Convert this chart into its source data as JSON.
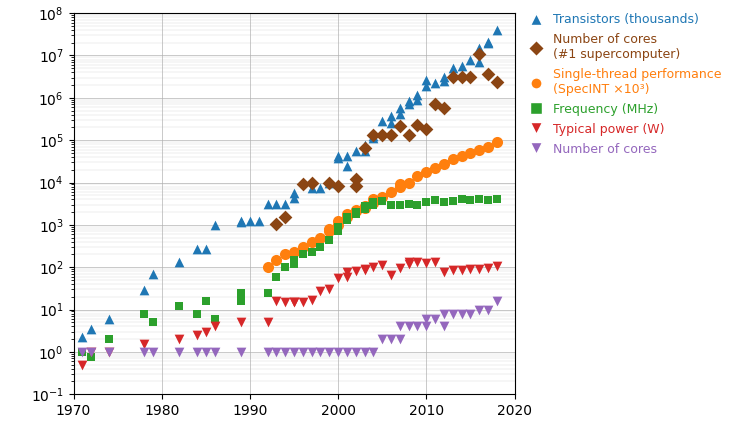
{
  "title": "",
  "xlim": [
    1970,
    2020
  ],
  "ylim_log_min": -1,
  "ylim_log_max": 8,
  "background_color": "#ffffff",
  "grid_color": "#b0b0b0",
  "transistors": {
    "color": "#1f77b4",
    "marker": "^",
    "label": "Transistors (thousands)",
    "data": [
      [
        1971,
        2.3
      ],
      [
        1972,
        3.5
      ],
      [
        1974,
        6.0
      ],
      [
        1978,
        29
      ],
      [
        1979,
        68
      ],
      [
        1982,
        134
      ],
      [
        1984,
        275
      ],
      [
        1985,
        275
      ],
      [
        1986,
        1000
      ],
      [
        1989,
        1200
      ],
      [
        1989,
        1180
      ],
      [
        1990,
        1200
      ],
      [
        1991,
        1200
      ],
      [
        1992,
        3100
      ],
      [
        1993,
        3100
      ],
      [
        1994,
        3100
      ],
      [
        1995,
        5500
      ],
      [
        1995,
        4400
      ],
      [
        1997,
        7500
      ],
      [
        1998,
        7500
      ],
      [
        1999,
        9500
      ],
      [
        2000,
        42000
      ],
      [
        2000,
        37500
      ],
      [
        2001,
        25000
      ],
      [
        2001,
        42000
      ],
      [
        2002,
        55000
      ],
      [
        2003,
        77000
      ],
      [
        2003,
        55000
      ],
      [
        2004,
        125000
      ],
      [
        2004,
        112000
      ],
      [
        2005,
        291000
      ],
      [
        2006,
        376000
      ],
      [
        2006,
        250000
      ],
      [
        2007,
        582000
      ],
      [
        2007,
        420000
      ],
      [
        2008,
        820000
      ],
      [
        2008,
        700000
      ],
      [
        2009,
        1170000
      ],
      [
        2009,
        904000
      ],
      [
        2010,
        2600000
      ],
      [
        2010,
        1900000
      ],
      [
        2011,
        2300000
      ],
      [
        2012,
        3100000
      ],
      [
        2012,
        2500000
      ],
      [
        2013,
        5000000
      ],
      [
        2014,
        5700000
      ],
      [
        2015,
        8000000
      ],
      [
        2016,
        7200000
      ],
      [
        2016,
        15000000
      ],
      [
        2017,
        19200000
      ],
      [
        2017,
        21000000
      ],
      [
        2018,
        39000000
      ]
    ]
  },
  "supercomputer_cores": {
    "color": "#8B4513",
    "marker": "D",
    "label": "Number of cores\n(#1 supercomputer)",
    "data": [
      [
        1993,
        1024
      ],
      [
        1994,
        1520
      ],
      [
        1996,
        9152
      ],
      [
        1997,
        9632
      ],
      [
        1999,
        9632
      ],
      [
        2000,
        8192
      ],
      [
        2002,
        8192
      ],
      [
        2002,
        12288
      ],
      [
        2003,
        65536
      ],
      [
        2004,
        131072
      ],
      [
        2005,
        131072
      ],
      [
        2006,
        131072
      ],
      [
        2007,
        212992
      ],
      [
        2008,
        129600
      ],
      [
        2009,
        224256
      ],
      [
        2010,
        186368
      ],
      [
        2011,
        705024
      ],
      [
        2012,
        560640
      ],
      [
        2013,
        3120000
      ],
      [
        2014,
        3120000
      ],
      [
        2015,
        3120000
      ],
      [
        2016,
        10649600
      ],
      [
        2017,
        3600000
      ],
      [
        2018,
        2414592
      ]
    ]
  },
  "single_thread": {
    "color": "#ff7f0e",
    "marker": "o",
    "label": "Single-thread performance\n(SpecINT ×10³)",
    "data": [
      [
        1992,
        100
      ],
      [
        1993,
        150
      ],
      [
        1994,
        200
      ],
      [
        1995,
        230
      ],
      [
        1996,
        300
      ],
      [
        1997,
        400
      ],
      [
        1998,
        500
      ],
      [
        1999,
        700
      ],
      [
        1999,
        800
      ],
      [
        2000,
        1000
      ],
      [
        2000,
        1200
      ],
      [
        2001,
        1500
      ],
      [
        2001,
        1800
      ],
      [
        2002,
        2100
      ],
      [
        2002,
        2300
      ],
      [
        2003,
        2500
      ],
      [
        2003,
        2800
      ],
      [
        2004,
        3200
      ],
      [
        2004,
        4000
      ],
      [
        2005,
        4500
      ],
      [
        2006,
        6000
      ],
      [
        2007,
        8000
      ],
      [
        2007,
        9000
      ],
      [
        2008,
        10000
      ],
      [
        2009,
        14000
      ],
      [
        2010,
        18000
      ],
      [
        2011,
        22000
      ],
      [
        2012,
        28000
      ],
      [
        2013,
        35000
      ],
      [
        2014,
        42000
      ],
      [
        2015,
        50000
      ],
      [
        2016,
        58000
      ],
      [
        2017,
        70000
      ],
      [
        2018,
        90000
      ]
    ]
  },
  "frequency": {
    "color": "#2ca02c",
    "marker": "s",
    "label": "Frequency (MHz)",
    "data": [
      [
        1971,
        1.0
      ],
      [
        1972,
        0.74
      ],
      [
        1974,
        2.0
      ],
      [
        1978,
        8.0
      ],
      [
        1979,
        5.0
      ],
      [
        1982,
        12.0
      ],
      [
        1984,
        8.0
      ],
      [
        1985,
        16.0
      ],
      [
        1986,
        6.0
      ],
      [
        1989,
        25.0
      ],
      [
        1989,
        16.0
      ],
      [
        1992,
        25.0
      ],
      [
        1993,
        60.0
      ],
      [
        1994,
        100.0
      ],
      [
        1995,
        120.0
      ],
      [
        1995,
        150.0
      ],
      [
        1996,
        200.0
      ],
      [
        1997,
        233.0
      ],
      [
        1998,
        300.0
      ],
      [
        1999,
        450.0
      ],
      [
        2000,
        700.0
      ],
      [
        2000,
        900.0
      ],
      [
        2001,
        1300.0
      ],
      [
        2001,
        1500.0
      ],
      [
        2002,
        1800.0
      ],
      [
        2002,
        2000.0
      ],
      [
        2003,
        2400.0
      ],
      [
        2003,
        2800.0
      ],
      [
        2004,
        3000.0
      ],
      [
        2004,
        3400.0
      ],
      [
        2005,
        3600.0
      ],
      [
        2006,
        3000.0
      ],
      [
        2007,
        3000.0
      ],
      [
        2008,
        3166.0
      ],
      [
        2009,
        2930.0
      ],
      [
        2010,
        3400.0
      ],
      [
        2011,
        3900.0
      ],
      [
        2012,
        3500.0
      ],
      [
        2013,
        3700.0
      ],
      [
        2014,
        4000.0
      ],
      [
        2015,
        3800.0
      ],
      [
        2016,
        4000.0
      ],
      [
        2017,
        3800.0
      ],
      [
        2018,
        4000.0
      ]
    ]
  },
  "power": {
    "color": "#d62728",
    "marker": "v",
    "label": "Typical power (W)",
    "data": [
      [
        1971,
        0.5
      ],
      [
        1972,
        1.0
      ],
      [
        1974,
        1.0
      ],
      [
        1978,
        1.5
      ],
      [
        1982,
        2.0
      ],
      [
        1984,
        2.5
      ],
      [
        1985,
        3.0
      ],
      [
        1986,
        4.0
      ],
      [
        1989,
        5.0
      ],
      [
        1992,
        5.0
      ],
      [
        1993,
        16.0
      ],
      [
        1994,
        15.0
      ],
      [
        1995,
        15.0
      ],
      [
        1995,
        15.0
      ],
      [
        1996,
        15.0
      ],
      [
        1997,
        17.0
      ],
      [
        1998,
        27.0
      ],
      [
        1999,
        30.0
      ],
      [
        2000,
        55.0
      ],
      [
        2001,
        75.0
      ],
      [
        2001,
        60.0
      ],
      [
        2002,
        82.0
      ],
      [
        2003,
        85.0
      ],
      [
        2003,
        89.0
      ],
      [
        2004,
        103.0
      ],
      [
        2005,
        115.0
      ],
      [
        2006,
        65.0
      ],
      [
        2007,
        95.0
      ],
      [
        2008,
        130.0
      ],
      [
        2008,
        120.0
      ],
      [
        2009,
        130.0
      ],
      [
        2010,
        125.0
      ],
      [
        2011,
        130.0
      ],
      [
        2012,
        77.0
      ],
      [
        2013,
        84.0
      ],
      [
        2014,
        88.0
      ],
      [
        2015,
        91.0
      ],
      [
        2016,
        91.0
      ],
      [
        2017,
        95.0
      ],
      [
        2018,
        105.0
      ]
    ]
  },
  "cores": {
    "color": "#9467bd",
    "marker": "v",
    "label": "Number of cores",
    "data": [
      [
        1971,
        1
      ],
      [
        1972,
        1
      ],
      [
        1974,
        1
      ],
      [
        1978,
        1
      ],
      [
        1979,
        1
      ],
      [
        1982,
        1
      ],
      [
        1984,
        1
      ],
      [
        1985,
        1
      ],
      [
        1986,
        1
      ],
      [
        1989,
        1
      ],
      [
        1992,
        1
      ],
      [
        1993,
        1
      ],
      [
        1994,
        1
      ],
      [
        1995,
        1
      ],
      [
        1996,
        1
      ],
      [
        1997,
        1
      ],
      [
        1998,
        1
      ],
      [
        1999,
        1
      ],
      [
        2000,
        1
      ],
      [
        2001,
        1
      ],
      [
        2002,
        1
      ],
      [
        2003,
        1
      ],
      [
        2004,
        1
      ],
      [
        2005,
        2
      ],
      [
        2006,
        2
      ],
      [
        2007,
        2
      ],
      [
        2007,
        4
      ],
      [
        2008,
        4
      ],
      [
        2009,
        4
      ],
      [
        2010,
        6
      ],
      [
        2010,
        4
      ],
      [
        2011,
        6
      ],
      [
        2012,
        4
      ],
      [
        2012,
        8
      ],
      [
        2013,
        8
      ],
      [
        2014,
        8
      ],
      [
        2015,
        8
      ],
      [
        2016,
        10
      ],
      [
        2017,
        10
      ],
      [
        2018,
        16
      ]
    ]
  },
  "legend_colors": [
    "#1f77b4",
    "#8B4513",
    "#ff7f0e",
    "#2ca02c",
    "#d62728",
    "#9467bd"
  ],
  "legend_labels": [
    "Transistors (thousands)",
    "Number of cores\n(#1 supercomputer)",
    "Single-thread performance\n(SpecINT ×10³)",
    "Frequency (MHz)",
    "Typical power (W)",
    "Number of cores"
  ],
  "legend_markers": [
    "^",
    "D",
    "o",
    "s",
    "v",
    "v"
  ]
}
